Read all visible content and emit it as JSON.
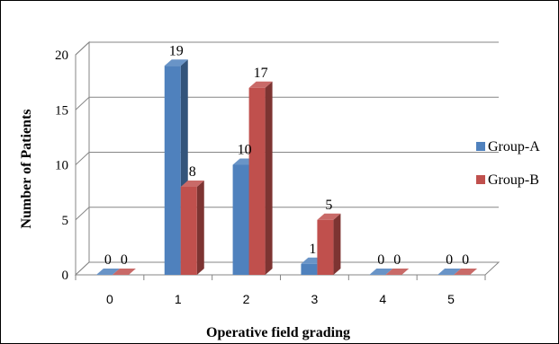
{
  "chart_data": {
    "type": "bar",
    "title": "",
    "xlabel": "Operative field grading",
    "ylabel": "Number of Patients",
    "categories": [
      "0",
      "1",
      "2",
      "3",
      "4",
      "5"
    ],
    "series": [
      {
        "name": "Group-A",
        "values": [
          0,
          19,
          10,
          1,
          0,
          0
        ],
        "color": "#4f81bd"
      },
      {
        "name": "Group-B",
        "values": [
          0,
          8,
          17,
          5,
          0,
          0
        ],
        "color": "#c0504d"
      }
    ],
    "ylim": [
      0,
      20
    ],
    "yticks": [
      0,
      5,
      10,
      15,
      20
    ],
    "grid": true,
    "legend_position": "right",
    "data_labels": true
  }
}
